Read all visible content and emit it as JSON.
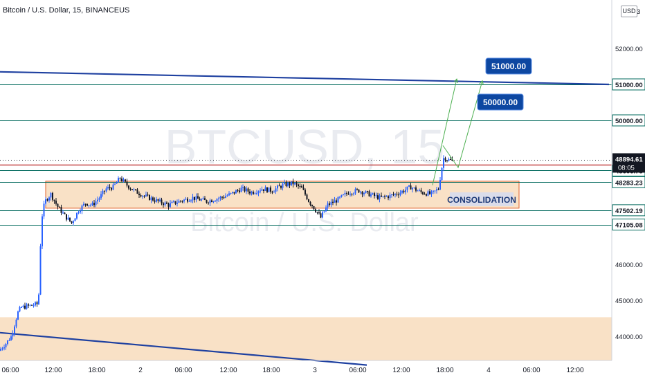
{
  "header": {
    "symbol_title": "Bitcoin / U.S. Dollar, 15, BINANCEUS",
    "currency": "USD"
  },
  "watermark": {
    "ticker": "BTCUSD, 15",
    "name": "Bitcoin / U.S. Dollar"
  },
  "colors": {
    "up": "#2962ff",
    "down": "#131722",
    "channel_line": "#1e40a0",
    "level_line": "#00695c",
    "zone_fill": "#f8dcbc",
    "zone_border": "#e0602a",
    "callout_fill": "#0d47a1",
    "projection": "#4caf50",
    "last_price_bg": "#131722"
  },
  "chart_data": {
    "type": "candlestick",
    "symbol": "BTCUSD",
    "interval": "15",
    "exchange": "BINANCEUS",
    "ylim": [
      43200,
      53000
    ],
    "y_axis_ticks": [
      "44000.00",
      "45000.00",
      "46000.00",
      "51000.00",
      "52000.00"
    ],
    "x_axis_ticks": [
      "06:00",
      "12:00",
      "18:00",
      "2",
      "06:00",
      "12:00",
      "18:00",
      "3",
      "06:00",
      "12:00",
      "18:00",
      "4",
      "06:00",
      "12:00"
    ],
    "price_path": [
      {
        "t": 0,
        "p": 43600
      },
      {
        "t": 10,
        "p": 43800
      },
      {
        "t": 18,
        "p": 44000
      },
      {
        "t": 27,
        "p": 44650
      },
      {
        "t": 32,
        "p": 44800
      },
      {
        "t": 45,
        "p": 44850
      },
      {
        "t": 57,
        "p": 44900
      },
      {
        "t": 60,
        "p": 46500
      },
      {
        "t": 63,
        "p": 47500
      },
      {
        "t": 68,
        "p": 47800
      },
      {
        "t": 75,
        "p": 47950
      },
      {
        "t": 85,
        "p": 47600
      },
      {
        "t": 95,
        "p": 47350
      },
      {
        "t": 105,
        "p": 47150
      },
      {
        "t": 115,
        "p": 47500
      },
      {
        "t": 125,
        "p": 47700
      },
      {
        "t": 135,
        "p": 47650
      },
      {
        "t": 145,
        "p": 47850
      },
      {
        "t": 155,
        "p": 48100
      },
      {
        "t": 165,
        "p": 48150
      },
      {
        "t": 175,
        "p": 48400
      },
      {
        "t": 185,
        "p": 48200
      },
      {
        "t": 195,
        "p": 48050
      },
      {
        "t": 210,
        "p": 47900
      },
      {
        "t": 230,
        "p": 47750
      },
      {
        "t": 245,
        "p": 47650
      },
      {
        "t": 260,
        "p": 47750
      },
      {
        "t": 280,
        "p": 47850
      },
      {
        "t": 300,
        "p": 47750
      },
      {
        "t": 320,
        "p": 47850
      },
      {
        "t": 335,
        "p": 47950
      },
      {
        "t": 350,
        "p": 48100
      },
      {
        "t": 365,
        "p": 48000
      },
      {
        "t": 380,
        "p": 48100
      },
      {
        "t": 395,
        "p": 48050
      },
      {
        "t": 410,
        "p": 48200
      },
      {
        "t": 425,
        "p": 48250
      },
      {
        "t": 438,
        "p": 48100
      },
      {
        "t": 448,
        "p": 47750
      },
      {
        "t": 458,
        "p": 47500
      },
      {
        "t": 465,
        "p": 47300
      },
      {
        "t": 475,
        "p": 47650
      },
      {
        "t": 490,
        "p": 47800
      },
      {
        "t": 505,
        "p": 48000
      },
      {
        "t": 520,
        "p": 48050
      },
      {
        "t": 535,
        "p": 47950
      },
      {
        "t": 550,
        "p": 47850
      },
      {
        "t": 565,
        "p": 47900
      },
      {
        "t": 580,
        "p": 48000
      },
      {
        "t": 595,
        "p": 48150
      },
      {
        "t": 610,
        "p": 48000
      },
      {
        "t": 625,
        "p": 47950
      },
      {
        "t": 635,
        "p": 48100
      },
      {
        "t": 640,
        "p": 48700
      },
      {
        "t": 643,
        "p": 49000
      },
      {
        "t": 648,
        "p": 48900
      },
      {
        "t": 653,
        "p": 48900
      }
    ],
    "horizontal_levels": [
      {
        "label": "51000.00",
        "price": 51000
      },
      {
        "label": "50000.00",
        "price": 50000
      },
      {
        "label": "48606.78",
        "price": 48606.78
      },
      {
        "label": "48283.23",
        "price": 48283.23
      },
      {
        "label": "47502.19",
        "price": 47502.19
      },
      {
        "label": "47105.08",
        "price": 47105.08
      }
    ],
    "red_level": {
      "price": 48760
    },
    "last_price": {
      "value": "48894.61",
      "countdown": "08:05"
    },
    "consolidation_zone": {
      "label": "CONSOLIDATION",
      "top": 48310,
      "bottom": 47560
    },
    "lower_zone": {
      "top": 44530,
      "bottom": 43200
    },
    "trendlines": [
      {
        "name": "upper-channel-line",
        "from": {
          "t": 0,
          "p": 51350
        },
        "to": {
          "t": 880,
          "p": 51000
        }
      },
      {
        "name": "lower-channel-line",
        "from": {
          "t": 0,
          "p": 44100
        },
        "to": {
          "t": 530,
          "p": 43200
        }
      }
    ],
    "callouts": [
      {
        "label": "51000.00",
        "price": 51000
      },
      {
        "label": "50000.00",
        "price": 50000
      }
    ],
    "projections": [
      {
        "name": "projection-path-upper",
        "points": [
          {
            "t": 625,
            "p": 48200
          },
          {
            "t": 660,
            "p": 51150
          }
        ]
      },
      {
        "name": "projection-path-lower",
        "points": [
          {
            "t": 640,
            "p": 49300
          },
          {
            "t": 662,
            "p": 48690
          },
          {
            "t": 697,
            "p": 51100
          }
        ]
      }
    ],
    "grid": false
  }
}
